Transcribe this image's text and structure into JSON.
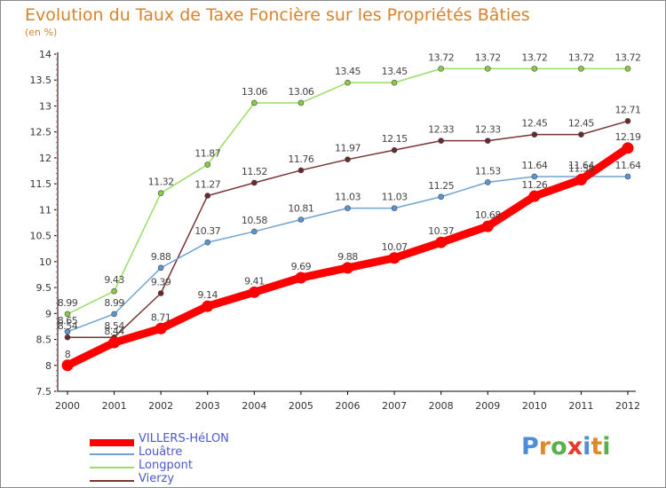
{
  "header": {
    "title": "Evolution du Taux de Taxe Foncière sur les Propriétés Bâties",
    "subtitle": "(en %)"
  },
  "logo": {
    "text": "Proxiti",
    "letter_colors": [
      "#4d8fd6",
      "#e0892a",
      "#58b04a",
      "#e83a2a",
      "#4d8fd6",
      "#e0892a",
      "#58b04a"
    ]
  },
  "chart_data": {
    "type": "line",
    "x": [
      "2000",
      "2001",
      "2002",
      "2003",
      "2004",
      "2005",
      "2006",
      "2007",
      "2008",
      "2009",
      "2010",
      "2011",
      "2012"
    ],
    "ylim": [
      7.5,
      14
    ],
    "yticks": [
      "7.5",
      "8",
      "8.5",
      "9",
      "9.5",
      "10",
      "10.5",
      "11",
      "11.5",
      "12",
      "12.5",
      "13",
      "13.5",
      "14"
    ],
    "grid": false,
    "legend_position": "bottom-left",
    "series": [
      {
        "name": "VILLERS-HéLON",
        "color": "#ff0000",
        "values": [
          8,
          8.44,
          8.71,
          9.14,
          9.41,
          9.69,
          9.88,
          10.07,
          10.37,
          10.68,
          11.26,
          11.58,
          12.19
        ],
        "labels": [
          "8",
          "8.44",
          "8.71",
          "9.14",
          "9.41",
          "9.69",
          "9.88",
          "10.07",
          "10.37",
          "10.68",
          "11.26",
          "11.58",
          "12.19"
        ]
      },
      {
        "name": "Louâtre",
        "color": "#6fa3d6",
        "values": [
          8.65,
          8.99,
          9.88,
          10.37,
          10.58,
          10.81,
          11.03,
          11.03,
          11.25,
          11.53,
          11.64,
          11.64,
          11.64
        ],
        "labels": [
          "8.65",
          "8.99",
          "9.88",
          "10.37",
          "10.58",
          "10.81",
          "11.03",
          "11.03",
          "11.25",
          "11.53",
          "11.64",
          "11.64",
          "11.64"
        ]
      },
      {
        "name": "Longpont",
        "color": "#99dd66",
        "values": [
          8.99,
          9.43,
          11.32,
          11.87,
          13.06,
          13.06,
          13.45,
          13.45,
          13.72,
          13.72,
          13.72,
          13.72,
          13.72
        ],
        "labels": [
          "8.99",
          "9.43",
          "11.32",
          "11.87",
          "13.06",
          "13.06",
          "13.45",
          "13.45",
          "13.72",
          "13.72",
          "13.72",
          "13.72",
          "13.72"
        ]
      },
      {
        "name": "Vierzy",
        "color": "#7a3535",
        "values": [
          8.54,
          8.54,
          9.39,
          11.27,
          11.52,
          11.76,
          11.97,
          12.15,
          12.33,
          12.33,
          12.45,
          12.45,
          12.71
        ],
        "labels": [
          "8.54",
          "8.54",
          "9.39",
          "11.27",
          "11.52",
          "11.76",
          "11.97",
          "12.15",
          "12.33",
          "12.33",
          "12.45",
          "12.45",
          "12.71"
        ]
      }
    ]
  }
}
